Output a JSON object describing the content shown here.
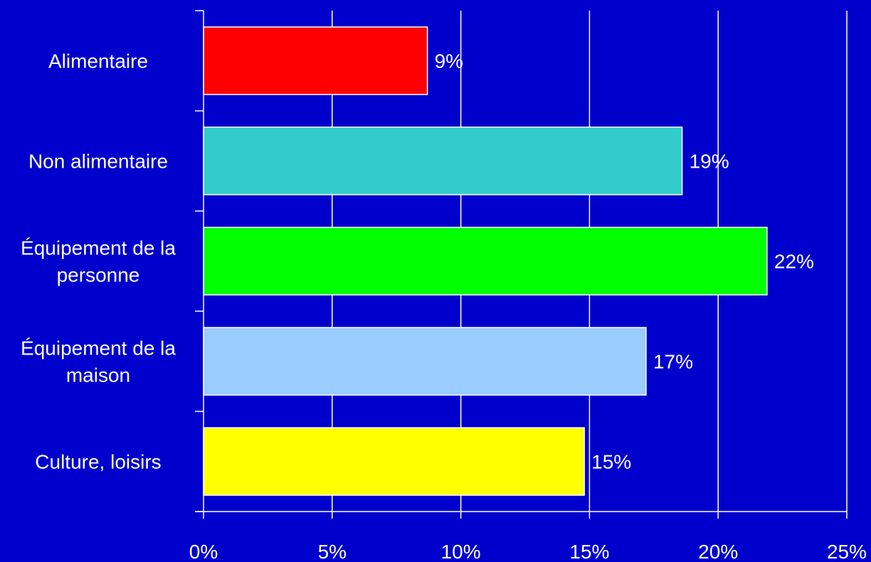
{
  "background_color": "#0000cc",
  "chart_data": {
    "type": "bar",
    "orientation": "horizontal",
    "categories": [
      "Alimentaire",
      "Non alimentaire",
      "Équipement de la personne",
      "Équipement de la maison",
      "Culture, loisirs"
    ],
    "category_label_lines": [
      [
        "Alimentaire"
      ],
      [
        "Non alimentaire"
      ],
      [
        "Équipement de la",
        "personne"
      ],
      [
        "Équipement de la",
        "maison"
      ],
      [
        "Culture, loisirs"
      ]
    ],
    "values": [
      8.7,
      18.6,
      21.9,
      17.2,
      14.8
    ],
    "data_labels": [
      "9%",
      "19%",
      "22%",
      "17%",
      "15%"
    ],
    "bar_colors": [
      "#ff0000",
      "#33cccc",
      "#00ff00",
      "#99ccff",
      "#ffff00"
    ],
    "xlim": [
      0,
      25
    ],
    "x_ticks": [
      0,
      5,
      10,
      15,
      20,
      25
    ],
    "x_tick_labels": [
      "0%",
      "5%",
      "10%",
      "15%",
      "20%",
      "25%"
    ],
    "grid": "vertical",
    "legend": "none",
    "title": "",
    "xlabel": "",
    "ylabel": ""
  }
}
